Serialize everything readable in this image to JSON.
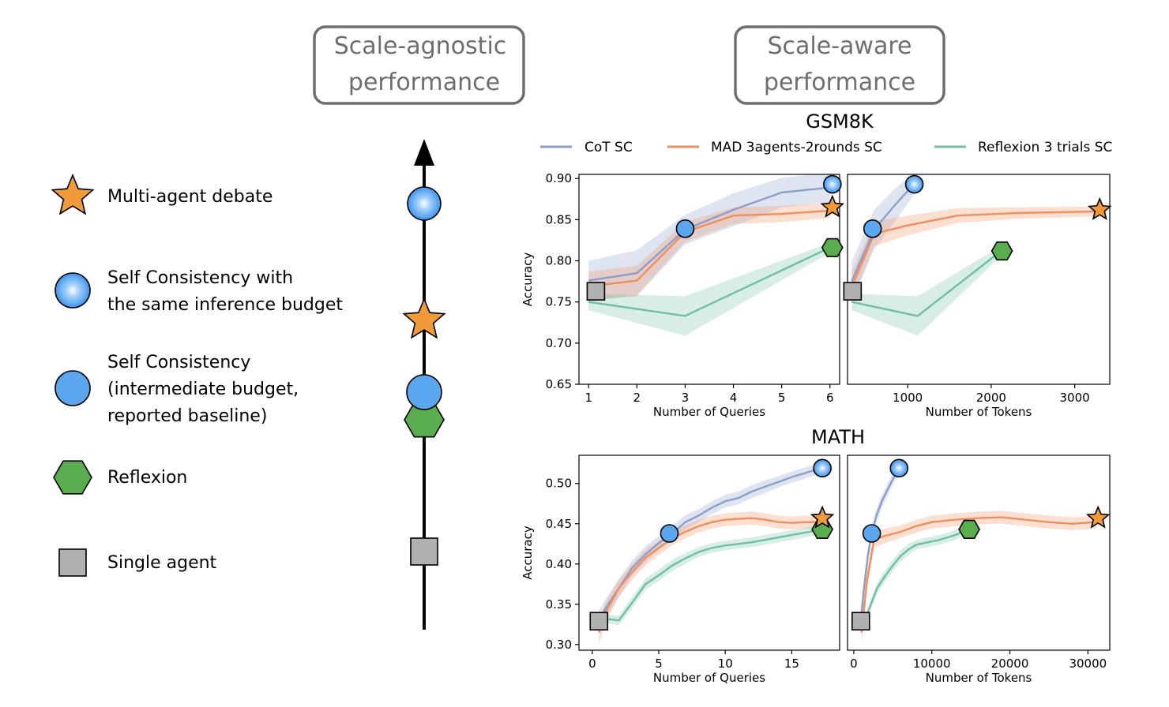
{
  "header": {
    "left_box": [
      "Scale-agnostic",
      "performance"
    ],
    "right_box": [
      "Scale-aware",
      "performance"
    ]
  },
  "legend": {
    "items": [
      {
        "marker": "star",
        "color": "#f09a3a",
        "lines": [
          "Multi-agent debate"
        ]
      },
      {
        "marker": "gradient-circle",
        "color": "#58a8f0",
        "lines": [
          "Self Consistency with",
          "the same inference budget"
        ]
      },
      {
        "marker": "circle",
        "color": "#5aa6ef",
        "lines": [
          "Self Consistency",
          "(intermediate budget,",
          "reported baseline)"
        ]
      },
      {
        "marker": "hexagon",
        "color": "#5aad4e",
        "lines": [
          "Reflexion"
        ]
      },
      {
        "marker": "square",
        "color": "#b0b0b0",
        "lines": [
          "Single agent"
        ]
      }
    ]
  },
  "colors": {
    "cot": "#8c9ecb",
    "mad": "#ef8e5e",
    "reflexion": "#6fc0a0",
    "star": "#f09a3a",
    "circle": "#5aa6ef",
    "hexagon": "#5aad4e",
    "square": "#b0b0b0"
  },
  "chart_data": [
    {
      "type": "line",
      "title": "GSM8K",
      "xlabel": "Number of Queries",
      "ylabel": "Accuracy",
      "xlim": [
        0.8,
        6.2
      ],
      "ylim": [
        0.65,
        0.905
      ],
      "xticks": [
        1,
        2,
        3,
        4,
        5,
        6
      ],
      "xtick_labels": [
        "1",
        "2",
        "3",
        "4",
        "5",
        "6"
      ],
      "yticks": [
        0.65,
        0.7,
        0.75,
        0.8,
        0.85,
        0.9
      ],
      "ytick_labels": [
        "0.65",
        "0.70",
        "0.75",
        "0.80",
        "0.85",
        "0.90"
      ],
      "legend": [
        "CoT SC",
        "MAD 3agents-2rounds SC",
        "Reflexion 3 trials SC"
      ],
      "series": [
        {
          "name": "CoT SC",
          "x": [
            1,
            2,
            3,
            4,
            5,
            6
          ],
          "y": [
            0.776,
            0.785,
            0.838,
            0.862,
            0.883,
            0.889
          ],
          "band": [
            0.024,
            0.028,
            0.018,
            0.02,
            0.018,
            0.018
          ]
        },
        {
          "name": "MAD 3agents-2rounds SC",
          "x": [
            1,
            2,
            3,
            4,
            5,
            6
          ],
          "y": [
            0.769,
            0.776,
            0.835,
            0.855,
            0.857,
            0.861
          ],
          "band": [
            0.018,
            0.018,
            0.012,
            0.01,
            0.01,
            0.009
          ]
        },
        {
          "name": "Reflexion 3 trials SC",
          "x": [
            1,
            3,
            6
          ],
          "y": [
            0.75,
            0.733,
            0.816
          ],
          "band": [
            0.01,
            0.024,
            0.006
          ]
        }
      ],
      "markers": [
        {
          "type": "square",
          "x": 1.15,
          "y": 0.763
        },
        {
          "type": "circle",
          "x": 3.0,
          "y": 0.839
        },
        {
          "type": "gradient-circle",
          "x": 6.05,
          "y": 0.893
        },
        {
          "type": "star",
          "x": 6.05,
          "y": 0.865
        },
        {
          "type": "hexagon",
          "x": 6.05,
          "y": 0.816
        }
      ]
    },
    {
      "type": "line",
      "xlabel": "Number of Tokens",
      "xlim": [
        280,
        3420
      ],
      "ylim": [
        0.65,
        0.905
      ],
      "xticks": [
        1000,
        2000,
        3000
      ],
      "xtick_labels": [
        "1000",
        "2000",
        "3000"
      ],
      "series": [
        {
          "name": "CoT SC",
          "x": [
            330,
            600,
            850,
            1020,
            1080
          ],
          "y": [
            0.775,
            0.838,
            0.868,
            0.887,
            0.893
          ],
          "band": [
            0.024,
            0.024,
            0.02,
            0.015,
            0.012
          ]
        },
        {
          "name": "MAD 3agents-2rounds SC",
          "x": [
            330,
            600,
            1000,
            1600,
            2300,
            3300
          ],
          "y": [
            0.768,
            0.833,
            0.843,
            0.855,
            0.858,
            0.86
          ],
          "band": [
            0.018,
            0.015,
            0.012,
            0.009,
            0.007,
            0.006
          ]
        },
        {
          "name": "Reflexion 3 trials SC",
          "x": [
            330,
            1120,
            2120
          ],
          "y": [
            0.75,
            0.733,
            0.812
          ],
          "band": [
            0.01,
            0.024,
            0.006
          ]
        }
      ],
      "markers": [
        {
          "type": "square",
          "x": 340,
          "y": 0.763
        },
        {
          "type": "circle",
          "x": 580,
          "y": 0.839
        },
        {
          "type": "gradient-circle",
          "x": 1080,
          "y": 0.893
        },
        {
          "type": "star",
          "x": 3300,
          "y": 0.862
        },
        {
          "type": "hexagon",
          "x": 2130,
          "y": 0.812
        }
      ]
    },
    {
      "type": "line",
      "title": "MATH",
      "xlabel": "Number of Queries",
      "ylabel": "Accuracy",
      "xlim": [
        -1,
        18.6
      ],
      "ylim": [
        0.293,
        0.535
      ],
      "xticks": [
        0,
        5,
        10,
        15
      ],
      "xtick_labels": [
        "0",
        "5",
        "10",
        "15"
      ],
      "yticks": [
        0.3,
        0.35,
        0.4,
        0.45,
        0.5
      ],
      "ytick_labels": [
        "0.30",
        "0.35",
        "0.40",
        "0.45",
        "0.50"
      ],
      "series": [
        {
          "name": "CoT SC",
          "x": [
            0.5,
            1,
            2,
            3,
            4,
            5,
            6,
            7,
            8,
            9,
            10,
            11,
            12,
            13,
            14,
            15,
            16,
            17
          ],
          "y": [
            0.33,
            0.345,
            0.37,
            0.395,
            0.412,
            0.426,
            0.438,
            0.452,
            0.46,
            0.47,
            0.478,
            0.482,
            0.49,
            0.496,
            0.502,
            0.508,
            0.513,
            0.518
          ],
          "band": [
            0.012,
            0.012,
            0.011,
            0.01,
            0.01,
            0.009,
            0.009,
            0.009,
            0.008,
            0.008,
            0.008,
            0.008,
            0.008,
            0.008,
            0.007,
            0.007,
            0.007,
            0.007
          ]
        },
        {
          "name": "MAD 3agents-2rounds SC",
          "x": [
            0.5,
            1,
            2,
            3,
            4,
            5,
            6,
            7,
            8,
            9,
            10,
            11,
            12,
            13,
            14,
            15,
            16,
            17
          ],
          "y": [
            0.315,
            0.34,
            0.37,
            0.39,
            0.408,
            0.42,
            0.432,
            0.44,
            0.447,
            0.452,
            0.455,
            0.456,
            0.457,
            0.455,
            0.452,
            0.451,
            0.452,
            0.452
          ],
          "band": [
            0.015,
            0.012,
            0.011,
            0.01,
            0.01,
            0.009,
            0.009,
            0.008,
            0.008,
            0.008,
            0.008,
            0.008,
            0.008,
            0.008,
            0.008,
            0.008,
            0.008,
            0.008
          ]
        },
        {
          "name": "Reflexion 3 trials SC",
          "x": [
            1,
            2,
            3,
            4,
            5,
            6,
            7,
            8,
            9,
            10,
            11,
            12,
            13,
            14,
            15,
            16,
            17
          ],
          "y": [
            0.332,
            0.33,
            0.352,
            0.375,
            0.386,
            0.398,
            0.407,
            0.415,
            0.42,
            0.423,
            0.425,
            0.427,
            0.43,
            0.433,
            0.436,
            0.439,
            0.442
          ],
          "band": [
            0.005,
            0.006,
            0.007,
            0.007,
            0.007,
            0.007,
            0.007,
            0.006,
            0.006,
            0.006,
            0.006,
            0.006,
            0.006,
            0.006,
            0.006,
            0.006,
            0.006
          ]
        }
      ],
      "markers": [
        {
          "type": "square",
          "x": 0.5,
          "y": 0.329
        },
        {
          "type": "circle",
          "x": 5.8,
          "y": 0.438
        },
        {
          "type": "gradient-circle",
          "x": 17.3,
          "y": 0.519
        },
        {
          "type": "star",
          "x": 17.3,
          "y": 0.457
        },
        {
          "type": "hexagon",
          "x": 17.3,
          "y": 0.443
        }
      ]
    },
    {
      "type": "line",
      "xlabel": "Number of Tokens",
      "xlim": [
        -800,
        32800
      ],
      "ylim": [
        0.293,
        0.535
      ],
      "xticks": [
        0,
        10000,
        20000,
        30000
      ],
      "xtick_labels": [
        "0",
        "10000",
        "20000",
        "30000"
      ],
      "series": [
        {
          "name": "CoT SC",
          "x": [
            900,
            1300,
            1800,
            2300,
            2900,
            3600,
            4300,
            5000,
            5800
          ],
          "y": [
            0.33,
            0.37,
            0.41,
            0.438,
            0.46,
            0.478,
            0.492,
            0.505,
            0.519
          ],
          "band": [
            0.012,
            0.011,
            0.01,
            0.009,
            0.009,
            0.008,
            0.008,
            0.007,
            0.007
          ]
        },
        {
          "name": "MAD 3agents-2rounds SC",
          "x": [
            1000,
            1700,
            2600,
            4000,
            6000,
            8000,
            10000,
            13000,
            16000,
            19000,
            22000,
            25000,
            28000,
            31000
          ],
          "y": [
            0.315,
            0.38,
            0.43,
            0.435,
            0.44,
            0.447,
            0.452,
            0.455,
            0.457,
            0.458,
            0.455,
            0.452,
            0.45,
            0.452
          ],
          "band": [
            0.015,
            0.012,
            0.01,
            0.009,
            0.008,
            0.008,
            0.008,
            0.008,
            0.008,
            0.008,
            0.008,
            0.008,
            0.008,
            0.008
          ]
        },
        {
          "name": "Reflexion 3 trials SC",
          "x": [
            1500,
            2200,
            3000,
            4000,
            5000,
            6000,
            7000,
            8000,
            9000,
            10000,
            11000,
            12000,
            13000,
            14000,
            15000
          ],
          "y": [
            0.332,
            0.35,
            0.37,
            0.385,
            0.398,
            0.41,
            0.418,
            0.424,
            0.426,
            0.428,
            0.43,
            0.433,
            0.436,
            0.44,
            0.443
          ],
          "band": [
            0.005,
            0.006,
            0.007,
            0.007,
            0.007,
            0.007,
            0.007,
            0.006,
            0.006,
            0.006,
            0.006,
            0.006,
            0.006,
            0.006,
            0.006
          ]
        }
      ],
      "markers": [
        {
          "type": "square",
          "x": 900,
          "y": 0.329
        },
        {
          "type": "circle",
          "x": 2300,
          "y": 0.438
        },
        {
          "type": "gradient-circle",
          "x": 5800,
          "y": 0.519
        },
        {
          "type": "star",
          "x": 31300,
          "y": 0.457
        },
        {
          "type": "hexagon",
          "x": 14800,
          "y": 0.443
        }
      ]
    }
  ]
}
